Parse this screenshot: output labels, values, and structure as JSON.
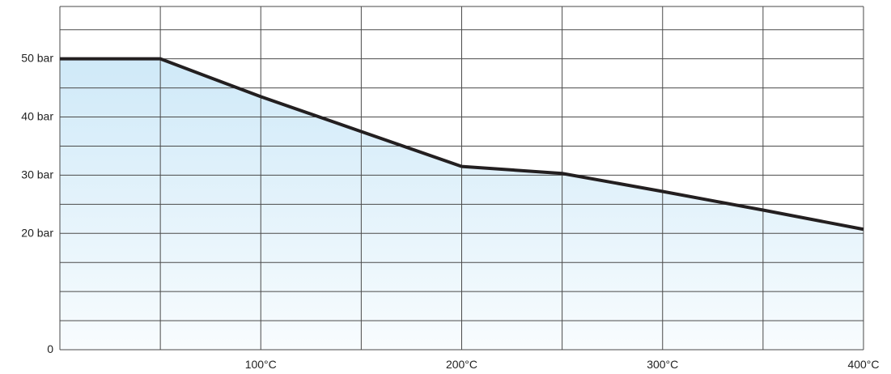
{
  "chart_data": {
    "type": "area",
    "x": [
      0,
      50,
      100,
      150,
      200,
      250,
      300,
      350,
      400
    ],
    "series": [
      {
        "values": [
          50,
          50,
          43.5,
          37.5,
          31.5,
          30.3,
          27.2,
          24,
          20.7
        ]
      }
    ],
    "xlim": [
      0,
      400
    ],
    "ylim": [
      0,
      59
    ],
    "xticks": [
      {
        "value": 100,
        "label": "100°C"
      },
      {
        "value": 200,
        "label": "200°C"
      },
      {
        "value": 300,
        "label": "300°C"
      },
      {
        "value": 400,
        "label": "400°C"
      }
    ],
    "yticks": [
      {
        "value": 0,
        "label": "0"
      },
      {
        "value": 20,
        "label": "20 bar"
      },
      {
        "value": 30,
        "label": "30 bar"
      },
      {
        "value": 40,
        "label": "40 bar"
      },
      {
        "value": 50,
        "label": "50 bar"
      }
    ],
    "grid": true,
    "colors": {
      "line": "#231f20",
      "fill_top": "#cfe9f8",
      "fill_bottom": "#f8fcfe",
      "grid": "#4a4a4a"
    }
  }
}
